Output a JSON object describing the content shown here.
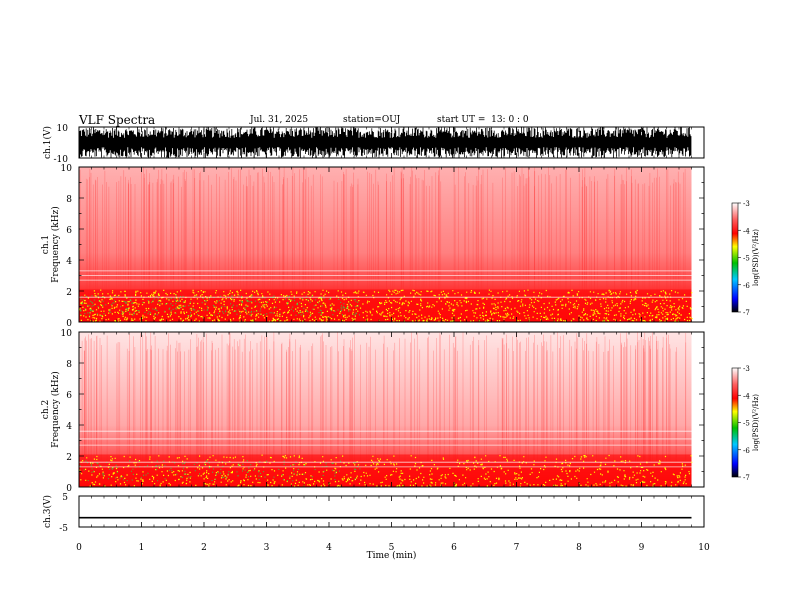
{
  "header": {
    "title": "VLF Spectra",
    "date": "Jul. 31, 2025",
    "station": "station=OUJ",
    "start": "start UT =  13: 0 : 0"
  },
  "chart_data": [
    {
      "type": "line",
      "panel": "waveform-ch1",
      "ylabel": "ch.1(V)",
      "ylim": [
        -10,
        10
      ],
      "yticks": [
        "10",
        "-10"
      ],
      "xlim": [
        0,
        10
      ],
      "description_of_signal": "dense impulsive waveform spanning nearly full range until ~9.8 min"
    },
    {
      "type": "heatmap",
      "panel": "spectrogram-ch1",
      "ylabel_line1": "ch.1",
      "ylabel_line2": "Frequency (kHz)",
      "ylim": [
        0,
        10
      ],
      "yticks": [
        "0",
        "2",
        "4",
        "6",
        "8",
        "10"
      ],
      "xlim": [
        0,
        10
      ],
      "data_end_min": 9.8,
      "colorbar": {
        "label": "log(PSD)(V²/Hz)",
        "range": [
          -7,
          -3
        ],
        "ticks": [
          "-3",
          "-4",
          "-5",
          "-6",
          "-7"
        ]
      }
    },
    {
      "type": "heatmap",
      "panel": "spectrogram-ch2",
      "ylabel_line1": "ch.2",
      "ylabel_line2": "Frequency (kHz)",
      "ylim": [
        0,
        10
      ],
      "yticks": [
        "0",
        "2",
        "4",
        "6",
        "8",
        "10"
      ],
      "xlim": [
        0,
        10
      ],
      "data_end_min": 9.8,
      "colorbar": {
        "label": "log(PSD)(V²/Hz)",
        "range": [
          -7,
          -3
        ],
        "ticks": [
          "-3",
          "-4",
          "-5",
          "-6",
          "-7"
        ]
      }
    },
    {
      "type": "line",
      "panel": "waveform-ch3",
      "ylabel": "ch.3(V)",
      "ylim": [
        -5,
        5
      ],
      "yticks": [
        "5",
        "-5"
      ],
      "xlim": [
        0,
        10
      ],
      "constant_value": -2,
      "data_end_min": 9.8
    }
  ],
  "xaxis": {
    "label": "Time (min)",
    "ticks": [
      "0",
      "1",
      "2",
      "3",
      "4",
      "5",
      "6",
      "7",
      "8",
      "9",
      "10"
    ]
  },
  "colors": {
    "background": "#ffffff",
    "axis": "#000000",
    "spec_low": "#ff0000",
    "spec_mid": "#ffff00",
    "spec_high": "#00c000"
  }
}
